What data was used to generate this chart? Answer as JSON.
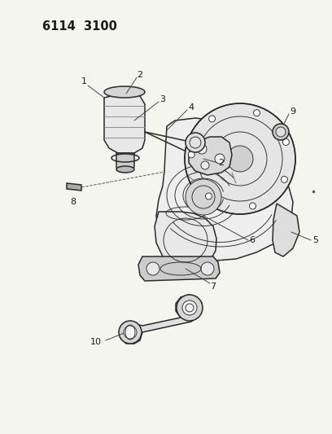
{
  "title": "6114  3100",
  "background_color": "#f5f5f0",
  "line_color": "#2a2a2a",
  "label_color": "#1a1a1a",
  "figsize": [
    4.08,
    5.33
  ],
  "dpi": 100,
  "lw_main": 1.1,
  "lw_thin": 0.65,
  "lw_heavy": 1.5
}
